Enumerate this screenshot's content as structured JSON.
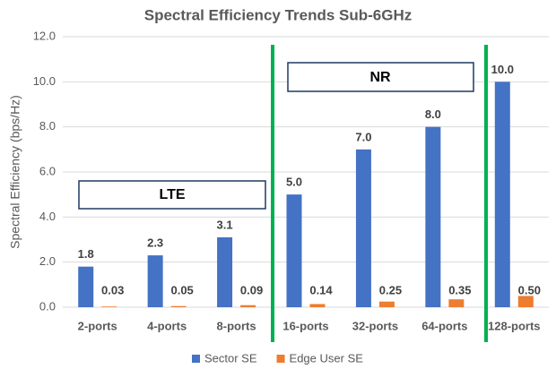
{
  "chart_data": {
    "type": "bar",
    "title": "Spectral Efficiency Trends Sub-6GHz",
    "y_label": "Spectral Efficiency (bps/Hz)",
    "categories": [
      "2-ports",
      "4-ports",
      "8-ports",
      "16-ports",
      "32-ports",
      "64-ports",
      "128-ports"
    ],
    "series": [
      {
        "name": "Sector SE",
        "color": "#4472c4",
        "values": [
          1.8,
          2.3,
          3.1,
          5,
          7,
          8,
          10
        ],
        "value_labels": [
          "1.8",
          "2.3",
          "3.1",
          "5.0",
          "7.0",
          "8.0",
          "10.0"
        ]
      },
      {
        "name": "Edge User SE",
        "color": "#ed7d31",
        "values": [
          0.03,
          0.05,
          0.09,
          0.14,
          0.25,
          0.35,
          0.5
        ],
        "value_labels": [
          "0.03",
          "0.05",
          "0.09",
          "0.14",
          "0.25",
          "0.35",
          "0.50"
        ]
      }
    ],
    "ylim": [
      0,
      12
    ],
    "yticks": [
      {
        "value": 0,
        "label": "0.0"
      },
      {
        "value": 2,
        "label": "2.0"
      },
      {
        "value": 4,
        "label": "4.0"
      },
      {
        "value": 6,
        "label": "6.0"
      },
      {
        "value": 8,
        "label": "8.0"
      },
      {
        "value": 10,
        "label": "10.0"
      },
      {
        "value": 12,
        "label": "12.0"
      }
    ],
    "grid": true,
    "legend": "bottom",
    "annotations": [
      "LTE",
      "NR"
    ]
  }
}
